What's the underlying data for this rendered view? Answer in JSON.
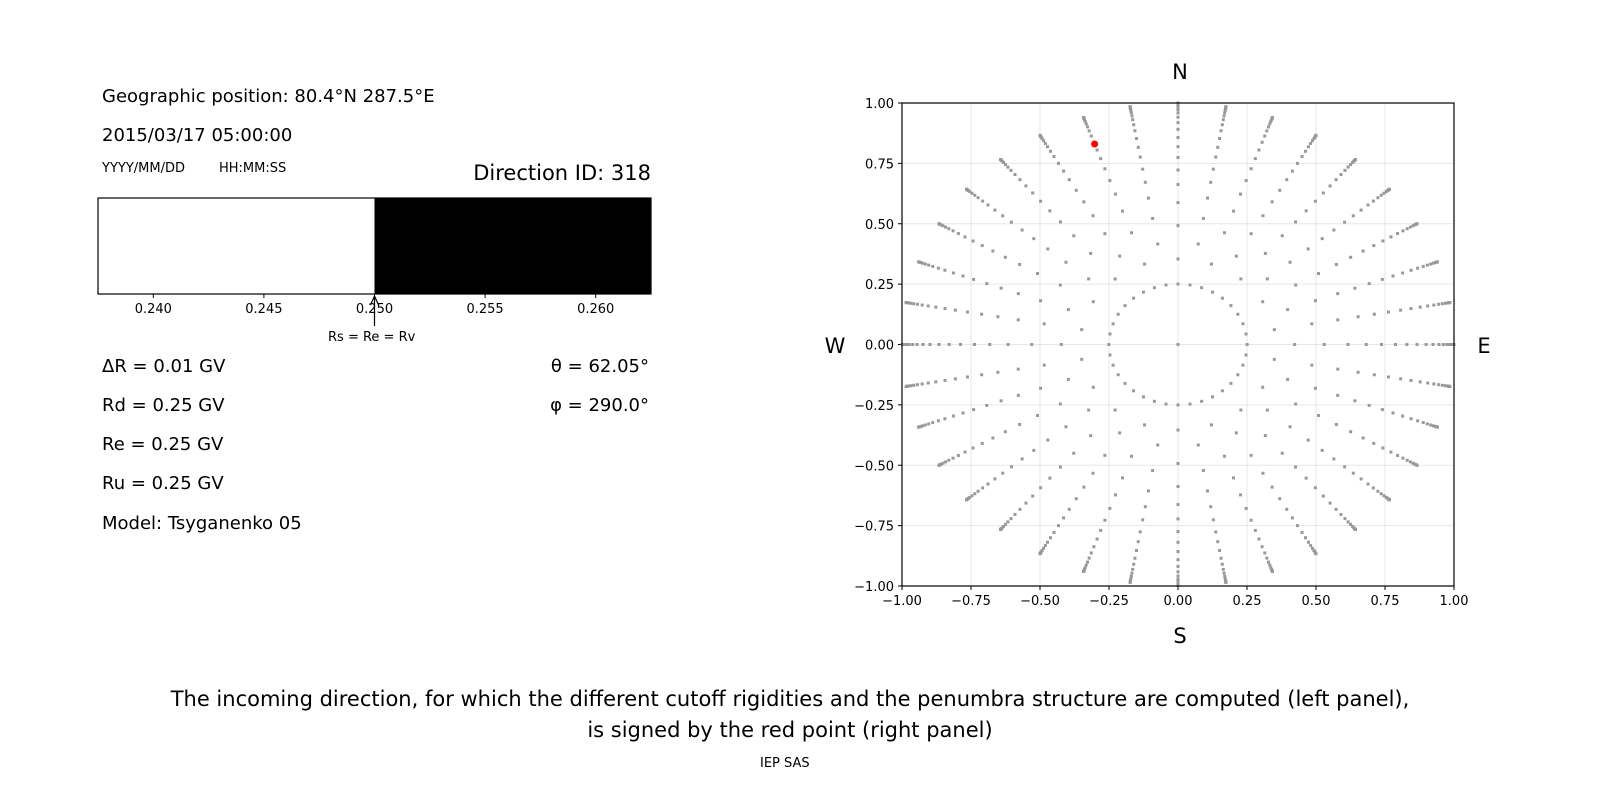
{
  "left_panel": {
    "geo_position": "Geographic position: 80.4°N 287.5°E",
    "datetime": "2015/03/17 05:00:00",
    "date_format": "YYYY/MM/DD",
    "time_format": "HH:MM:SS",
    "direction_id": "Direction ID: 318",
    "delta_r": "ΔR = 0.01 GV",
    "rd": "Rd = 0.25 GV",
    "re": "Re = 0.25 GV",
    "ru": "Ru = 0.25 GV",
    "model": "Model: Tsyganenko 05",
    "theta": "θ = 62.05°",
    "phi": "φ = 290.0°",
    "arrow_label": "Rs = Re = Rv"
  },
  "chart_data": [
    {
      "type": "bar",
      "description_kind": "penumbra",
      "xlim": [
        0.2375,
        0.2625
      ],
      "xticks": [
        "0.240",
        "0.245",
        "0.250",
        "0.255",
        "0.260"
      ],
      "xtick_values": [
        0.24,
        0.245,
        0.25,
        0.255,
        0.26
      ],
      "segments": [
        {
          "from": 0.2375,
          "to": 0.25,
          "color": "#ffffff"
        },
        {
          "from": 0.25,
          "to": 0.2625,
          "color": "#000000"
        }
      ],
      "arrow_at": 0.25
    },
    {
      "type": "scatter",
      "xlim": [
        -1,
        1
      ],
      "ylim": [
        -1,
        1
      ],
      "grid": true,
      "xticks": [
        "−1.00",
        "−0.75",
        "−0.50",
        "−0.25",
        "0.00",
        "0.25",
        "0.50",
        "0.75",
        "1.00"
      ],
      "yticks": [
        "−1.00",
        "−0.75",
        "−0.50",
        "−0.25",
        "0.00",
        "0.25",
        "0.50",
        "0.75",
        "1.00"
      ],
      "tick_values": [
        -1,
        -0.75,
        -0.5,
        -0.25,
        0,
        0.25,
        0.5,
        0.75,
        1
      ],
      "compass": {
        "n": "N",
        "s": "S",
        "e": "E",
        "w": "W"
      },
      "directions_grid": {
        "azimuth_step_deg": 10,
        "zenith_deg": [
          0,
          14.5,
          25,
          32,
          38,
          43,
          47.5,
          52,
          56,
          60,
          64,
          67.5,
          71,
          74,
          77,
          80,
          82.5,
          85,
          87,
          88.5,
          90
        ],
        "color": "#999999"
      },
      "selected_direction": {
        "theta_deg": 62.05,
        "phi_deg": 290.0,
        "color": "#ff0000"
      }
    }
  ],
  "caption": {
    "line1": "The incoming direction, for which the different cutoff rigidities and the penumbra structure are computed (left panel),",
    "line2": "is signed by the red point (right panel)",
    "credit": "IEP SAS"
  }
}
